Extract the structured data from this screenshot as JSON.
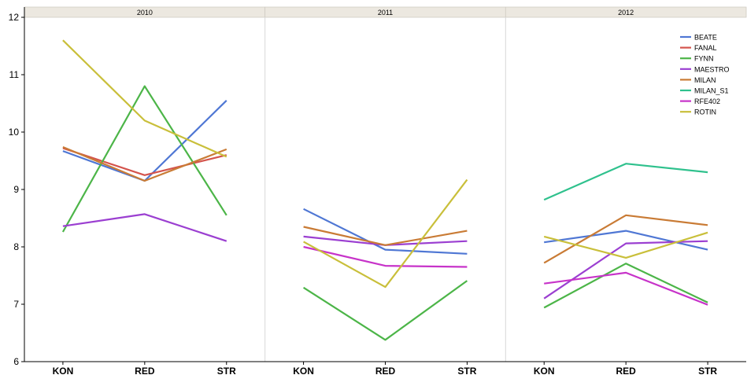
{
  "chart_data": {
    "type": "line",
    "panels": [
      {
        "label": "2010",
        "categories": [
          "KON",
          "RED",
          "STR"
        ],
        "series": [
          {
            "name": "BEATE",
            "values": [
              9.67,
              9.15,
              10.55
            ]
          },
          {
            "name": "FANAL",
            "values": [
              9.72,
              9.25,
              9.6
            ]
          },
          {
            "name": "FYNN",
            "values": [
              8.26,
              10.8,
              8.55
            ]
          },
          {
            "name": "MAESTRO",
            "values": [
              8.36,
              8.57,
              8.1
            ]
          },
          {
            "name": "MILAN",
            "values": [
              9.74,
              9.15,
              9.7
            ]
          },
          {
            "name": "ROTIN",
            "values": [
              11.6,
              10.2,
              9.57
            ]
          }
        ]
      },
      {
        "label": "2011",
        "categories": [
          "KON",
          "RED",
          "STR"
        ],
        "series": [
          {
            "name": "BEATE",
            "values": [
              8.66,
              7.95,
              7.88
            ]
          },
          {
            "name": "FYNN",
            "values": [
              7.29,
              6.38,
              7.41
            ]
          },
          {
            "name": "MAESTRO",
            "values": [
              8.18,
              8.03,
              8.1
            ]
          },
          {
            "name": "MILAN",
            "values": [
              8.35,
              8.03,
              8.28
            ]
          },
          {
            "name": "RFE402",
            "values": [
              8.0,
              7.67,
              7.65
            ]
          },
          {
            "name": "ROTIN",
            "values": [
              8.09,
              7.3,
              9.17
            ]
          }
        ]
      },
      {
        "label": "2012",
        "categories": [
          "KON",
          "RED",
          "STR"
        ],
        "series": [
          {
            "name": "BEATE",
            "values": [
              8.08,
              8.28,
              7.95
            ]
          },
          {
            "name": "FYNN",
            "values": [
              6.94,
              7.71,
              7.03
            ]
          },
          {
            "name": "MAESTRO",
            "values": [
              7.1,
              8.06,
              8.1
            ]
          },
          {
            "name": "MILAN",
            "values": [
              7.72,
              8.55,
              8.38
            ]
          },
          {
            "name": "MILAN_S1",
            "values": [
              8.82,
              9.45,
              9.3
            ]
          },
          {
            "name": "RFE402",
            "values": [
              7.36,
              7.55,
              6.99
            ]
          },
          {
            "name": "ROTIN",
            "values": [
              8.18,
              7.81,
              8.25
            ]
          }
        ]
      }
    ],
    "ylim": [
      6,
      12
    ],
    "yticks": [
      "6",
      "7",
      "8",
      "9",
      "10",
      "11",
      "12"
    ],
    "xlabel": "",
    "ylabel": "",
    "title": "",
    "grid": false,
    "legend_position": "top-right",
    "legend": [
      {
        "name": "BEATE",
        "color": "#4f77d4"
      },
      {
        "name": "FANAL",
        "color": "#d4544d"
      },
      {
        "name": "FYNN",
        "color": "#4cb548"
      },
      {
        "name": "MAESTRO",
        "color": "#9b3fd1"
      },
      {
        "name": "MILAN",
        "color": "#c97b35"
      },
      {
        "name": "MILAN_S1",
        "color": "#2fc18d"
      },
      {
        "name": "RFE402",
        "color": "#c733c9"
      },
      {
        "name": "ROTIN",
        "color": "#c9bf3a"
      }
    ]
  }
}
